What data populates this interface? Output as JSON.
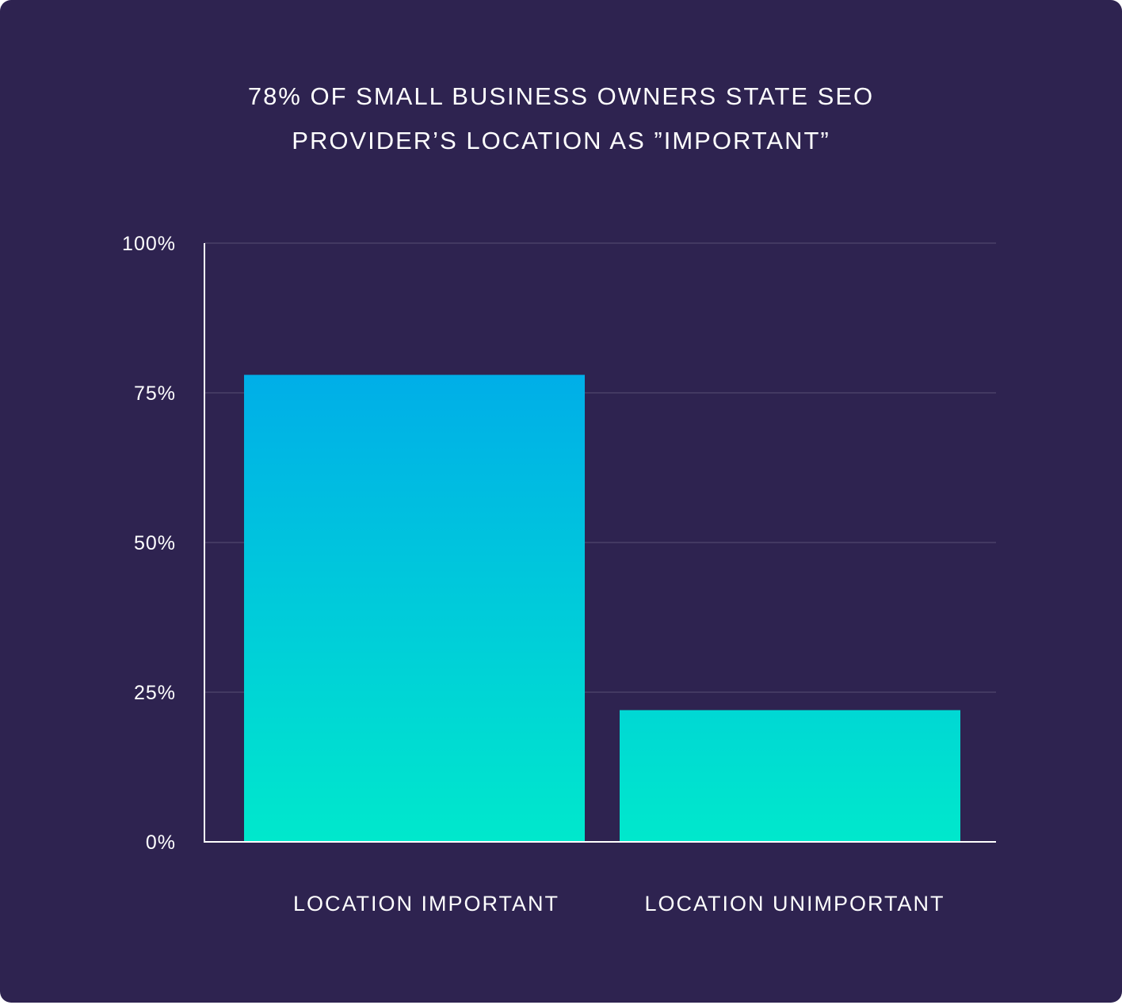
{
  "chart_data": {
    "type": "bar",
    "title_lines": [
      "78% OF SMALL BUSINESS OWNERS STATE SEO",
      "PROVIDER’S LOCATION AS ”IMPORTANT”"
    ],
    "categories": [
      "LOCATION IMPORTANT",
      "LOCATION UNIMPORTANT"
    ],
    "values": [
      78,
      22
    ],
    "xlabel": "",
    "ylabel": "",
    "ylim": [
      0,
      100
    ],
    "yticks": [
      0,
      25,
      50,
      75,
      100
    ],
    "ytick_labels": [
      "0%",
      "25%",
      "50%",
      "75%",
      "100%"
    ],
    "grid": true,
    "legend": "none"
  },
  "colors": {
    "background": "#2e2350",
    "bar_top": "#00aee8",
    "bar_bottom": "#00e8cc",
    "gridline": "#4a4168",
    "axis": "#ffffff",
    "text": "#ffffff"
  }
}
